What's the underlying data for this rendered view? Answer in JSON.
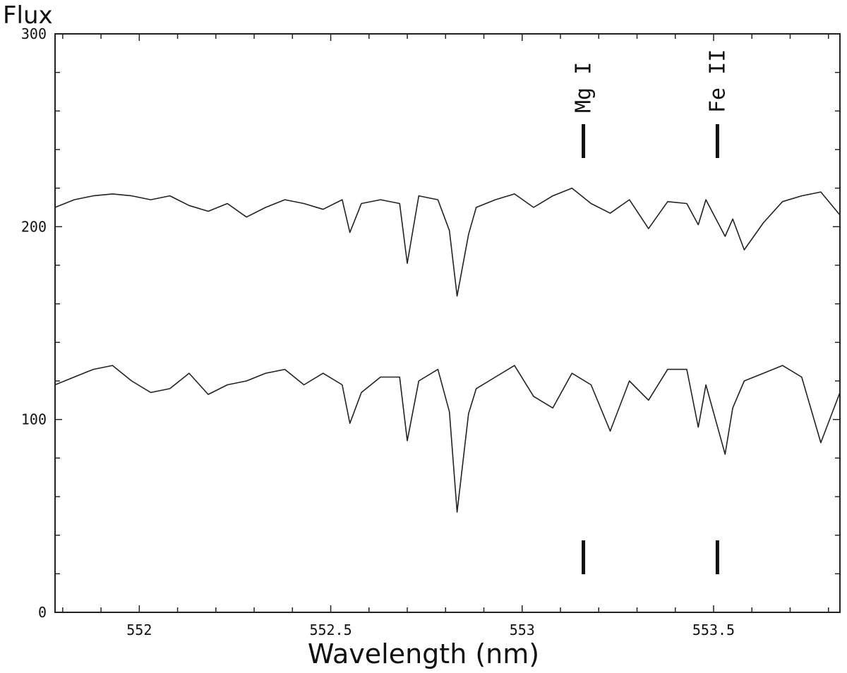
{
  "chart_data": {
    "type": "line",
    "title": "",
    "xlabel": "Wavelength (nm)",
    "ylabel": "Flux",
    "xlim": [
      551.78,
      553.83
    ],
    "ylim": [
      0,
      300
    ],
    "x_ticks": [
      552,
      552.5,
      553,
      553.5
    ],
    "x_tick_labels": [
      "552",
      "552.5",
      "553",
      "553.5"
    ],
    "y_ticks": [
      0,
      100,
      200,
      300
    ],
    "y_tick_labels": [
      "0",
      "100",
      "200",
      "300"
    ],
    "grid": false,
    "series": [
      {
        "x": [
          551.78,
          551.83,
          551.88,
          551.93,
          551.98,
          552.03,
          552.08,
          552.13,
          552.18,
          552.23,
          552.28,
          552.33,
          552.38,
          552.43,
          552.48,
          552.53,
          552.55,
          552.58,
          552.63,
          552.68,
          552.7,
          552.73,
          552.78,
          552.81,
          552.83,
          552.86,
          552.88,
          552.93,
          552.98,
          553.03,
          553.08,
          553.13,
          553.18,
          553.23,
          553.28,
          553.33,
          553.38,
          553.43,
          553.46,
          553.48,
          553.53,
          553.55,
          553.58,
          553.63,
          553.68,
          553.73,
          553.78,
          553.83
        ],
        "values": [
          210,
          214,
          216,
          217,
          216,
          214,
          216,
          211,
          208,
          212,
          205,
          210,
          214,
          212,
          209,
          214,
          197,
          212,
          214,
          212,
          181,
          216,
          214,
          198,
          164,
          196,
          210,
          214,
          217,
          210,
          216,
          220,
          212,
          207,
          214,
          199,
          213,
          212,
          201,
          214,
          195,
          204,
          188,
          202,
          213,
          216,
          218,
          206
        ]
      },
      {
        "x": [
          551.78,
          551.83,
          551.88,
          551.93,
          551.98,
          552.03,
          552.08,
          552.13,
          552.18,
          552.23,
          552.28,
          552.33,
          552.38,
          552.43,
          552.48,
          552.53,
          552.55,
          552.58,
          552.63,
          552.68,
          552.7,
          552.73,
          552.78,
          552.81,
          552.83,
          552.86,
          552.88,
          552.93,
          552.98,
          553.03,
          553.08,
          553.13,
          553.18,
          553.23,
          553.28,
          553.33,
          553.38,
          553.43,
          553.46,
          553.48,
          553.53,
          553.55,
          553.58,
          553.63,
          553.68,
          553.73,
          553.78,
          553.83
        ],
        "values": [
          118,
          122,
          126,
          128,
          120,
          114,
          116,
          124,
          113,
          118,
          120,
          124,
          126,
          118,
          124,
          118,
          98,
          114,
          122,
          122,
          89,
          120,
          126,
          104,
          52,
          103,
          116,
          122,
          128,
          112,
          106,
          124,
          118,
          94,
          120,
          110,
          126,
          126,
          96,
          118,
          82,
          106,
          120,
          124,
          128,
          122,
          88,
          114
        ]
      }
    ],
    "annotations": [
      {
        "text": "Mg I",
        "x": 553.16
      },
      {
        "text": "Fe II",
        "x": 553.51
      }
    ]
  }
}
